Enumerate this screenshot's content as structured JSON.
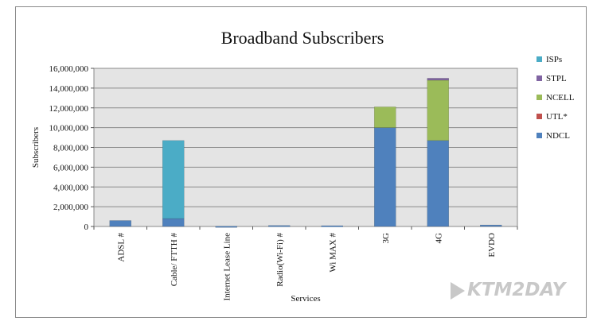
{
  "chart_data": {
    "type": "bar",
    "stacked": true,
    "title": "Broadband Subscribers",
    "xlabel": "Services",
    "ylabel": "Subscribers",
    "ylim": [
      0,
      16000000
    ],
    "yticks": [
      0,
      2000000,
      4000000,
      6000000,
      8000000,
      10000000,
      12000000,
      14000000,
      16000000
    ],
    "ytick_labels": [
      "0",
      "2,000,000",
      "4,000,000",
      "6,000,000",
      "8,000,000",
      "10,000,000",
      "12,000,000",
      "14,000,000",
      "16,000,000"
    ],
    "grid": true,
    "legend_position": "right",
    "categories": [
      "ADSL #",
      "Cable/ FTTH #",
      "Internet Lease Line",
      "Radio(Wi-Fi) #",
      "Wi MAX #",
      "3G",
      "4G",
      "EVDO"
    ],
    "series": [
      {
        "name": "NDCL",
        "color": "#4f81bd",
        "values": [
          600000,
          800000,
          20000,
          100000,
          80000,
          10000000,
          8700000,
          150000
        ]
      },
      {
        "name": "UTL*",
        "color": "#c0504d",
        "values": [
          0,
          0,
          0,
          0,
          0,
          0,
          0,
          0
        ]
      },
      {
        "name": "NCELL",
        "color": "#9bbb59",
        "values": [
          0,
          0,
          0,
          0,
          0,
          2100000,
          6100000,
          0
        ]
      },
      {
        "name": "STPL",
        "color": "#8064a2",
        "values": [
          0,
          0,
          0,
          0,
          0,
          0,
          200000,
          0
        ]
      },
      {
        "name": "ISPs",
        "color": "#4bacc6",
        "values": [
          0,
          7900000,
          0,
          0,
          0,
          0,
          0,
          0
        ]
      }
    ],
    "legend_order": [
      "ISPs",
      "STPL",
      "NCELL",
      "UTL*",
      "NDCL"
    ]
  },
  "watermark": "KTM2DAY"
}
